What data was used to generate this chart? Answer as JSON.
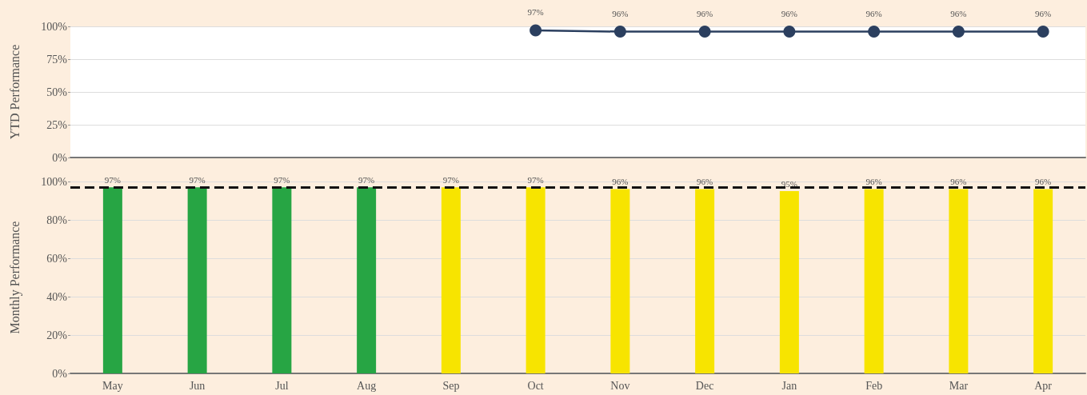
{
  "chart_data": [
    {
      "type": "line",
      "ylabel": "YTD Performance",
      "categories": [
        null,
        null,
        null,
        null,
        null,
        null,
        null,
        null,
        null,
        null,
        null,
        null
      ],
      "series": [
        {
          "color": "#2b3f5f",
          "values": [
            null,
            null,
            null,
            null,
            null,
            97,
            96,
            96,
            96,
            96,
            96,
            96
          ],
          "value_labels": [
            null,
            null,
            null,
            null,
            null,
            "97%",
            "96%",
            "96%",
            "96%",
            "96%",
            "96%",
            "96%"
          ]
        }
      ],
      "ylim": [
        0,
        100
      ],
      "yticks": [
        {
          "value": 0,
          "label": "0%"
        },
        {
          "value": 25,
          "label": "25%"
        },
        {
          "value": 50,
          "label": "50%"
        },
        {
          "value": 75,
          "label": "75%"
        },
        {
          "value": 100,
          "label": "100%"
        }
      ],
      "grid": "y",
      "marker": "circle",
      "line_style": "solid"
    },
    {
      "type": "bar",
      "ylabel": "Monthly Performance",
      "categories": [
        "May",
        "Jun",
        "Jul",
        "Aug",
        "Sep",
        "Oct",
        "Nov",
        "Dec",
        "Jan",
        "Feb",
        "Mar",
        "Apr"
      ],
      "values": [
        97,
        97,
        97,
        97,
        97,
        97,
        96,
        96,
        95,
        96,
        96,
        96
      ],
      "colors": [
        "#27a544",
        "#27a544",
        "#27a544",
        "#27a544",
        "#f7e400",
        "#f7e400",
        "#f7e400",
        "#f7e400",
        "#f7e400",
        "#f7e400",
        "#f7e400",
        "#f7e400"
      ],
      "value_labels": [
        "97%",
        "97%",
        "97%",
        "97%",
        "97%",
        "97%",
        "96%",
        "96%",
        "95%",
        "96%",
        "96%",
        "96%"
      ],
      "ylim": [
        0,
        100
      ],
      "yticks": [
        {
          "value": 0,
          "label": "0%"
        },
        {
          "value": 20,
          "label": "20%"
        },
        {
          "value": 40,
          "label": "40%"
        },
        {
          "value": 60,
          "label": "60%"
        },
        {
          "value": 80,
          "label": "80%"
        },
        {
          "value": 100,
          "label": "100%"
        }
      ],
      "ref_lines": [
        {
          "axis": "y",
          "value": 97,
          "color": "#111111",
          "line_style": "dashed"
        }
      ],
      "grid": "y"
    }
  ]
}
